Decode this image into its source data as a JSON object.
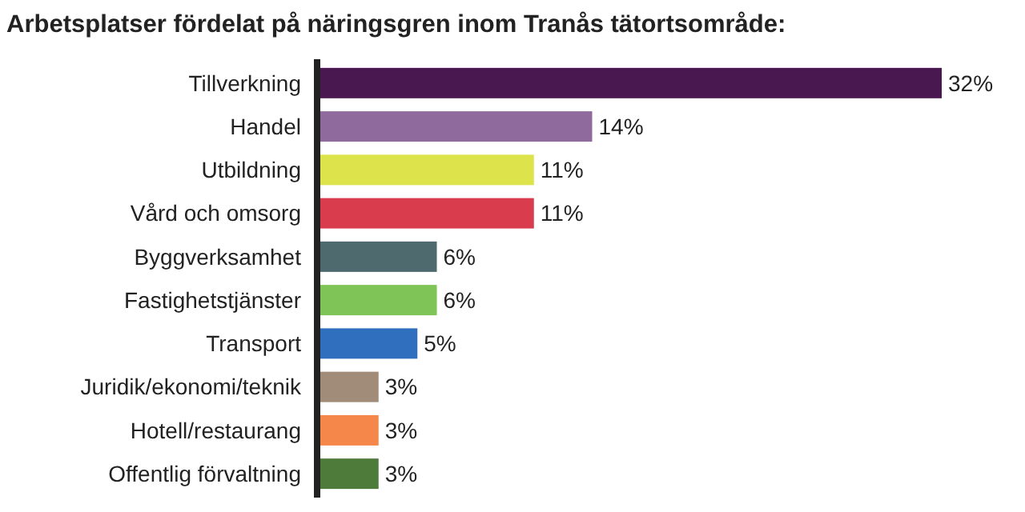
{
  "chart_data": {
    "type": "bar",
    "orientation": "horizontal",
    "title": "Arbetsplatser fördelat på näringsgren inom Tranås tätortsområde:",
    "categories": [
      "Tillverkning",
      "Handel",
      "Utbildning",
      "Vård och omsorg",
      "Byggverksamhet",
      "Fastighetstjänster",
      "Transport",
      "Juridik/ekonomi/teknik",
      "Hotell/restaurang",
      "Offentlig förvaltning"
    ],
    "values": [
      32,
      14,
      11,
      11,
      6,
      6,
      5,
      3,
      3,
      3
    ],
    "colors": [
      "#4a1850",
      "#8f6a9c",
      "#dde34a",
      "#d93c4c",
      "#4f6a6e",
      "#7ec457",
      "#2f6fbe",
      "#a08c78",
      "#f5874a",
      "#4e7a3a"
    ],
    "value_labels": [
      "32%",
      "14%",
      "11%",
      "11%",
      "6%",
      "6%",
      "5%",
      "3%",
      "3%",
      "3%"
    ]
  }
}
